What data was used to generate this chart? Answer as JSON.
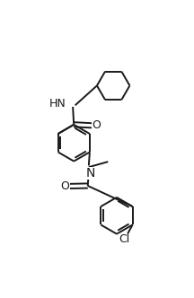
{
  "bg_color": "#ffffff",
  "line_color": "#1a1a1a",
  "line_width": 1.4,
  "font_size": 8.5,
  "figsize": [
    2.16,
    3.32
  ],
  "dpi": 100,
  "xlim": [
    0,
    10
  ],
  "ylim": [
    0,
    15.37
  ]
}
